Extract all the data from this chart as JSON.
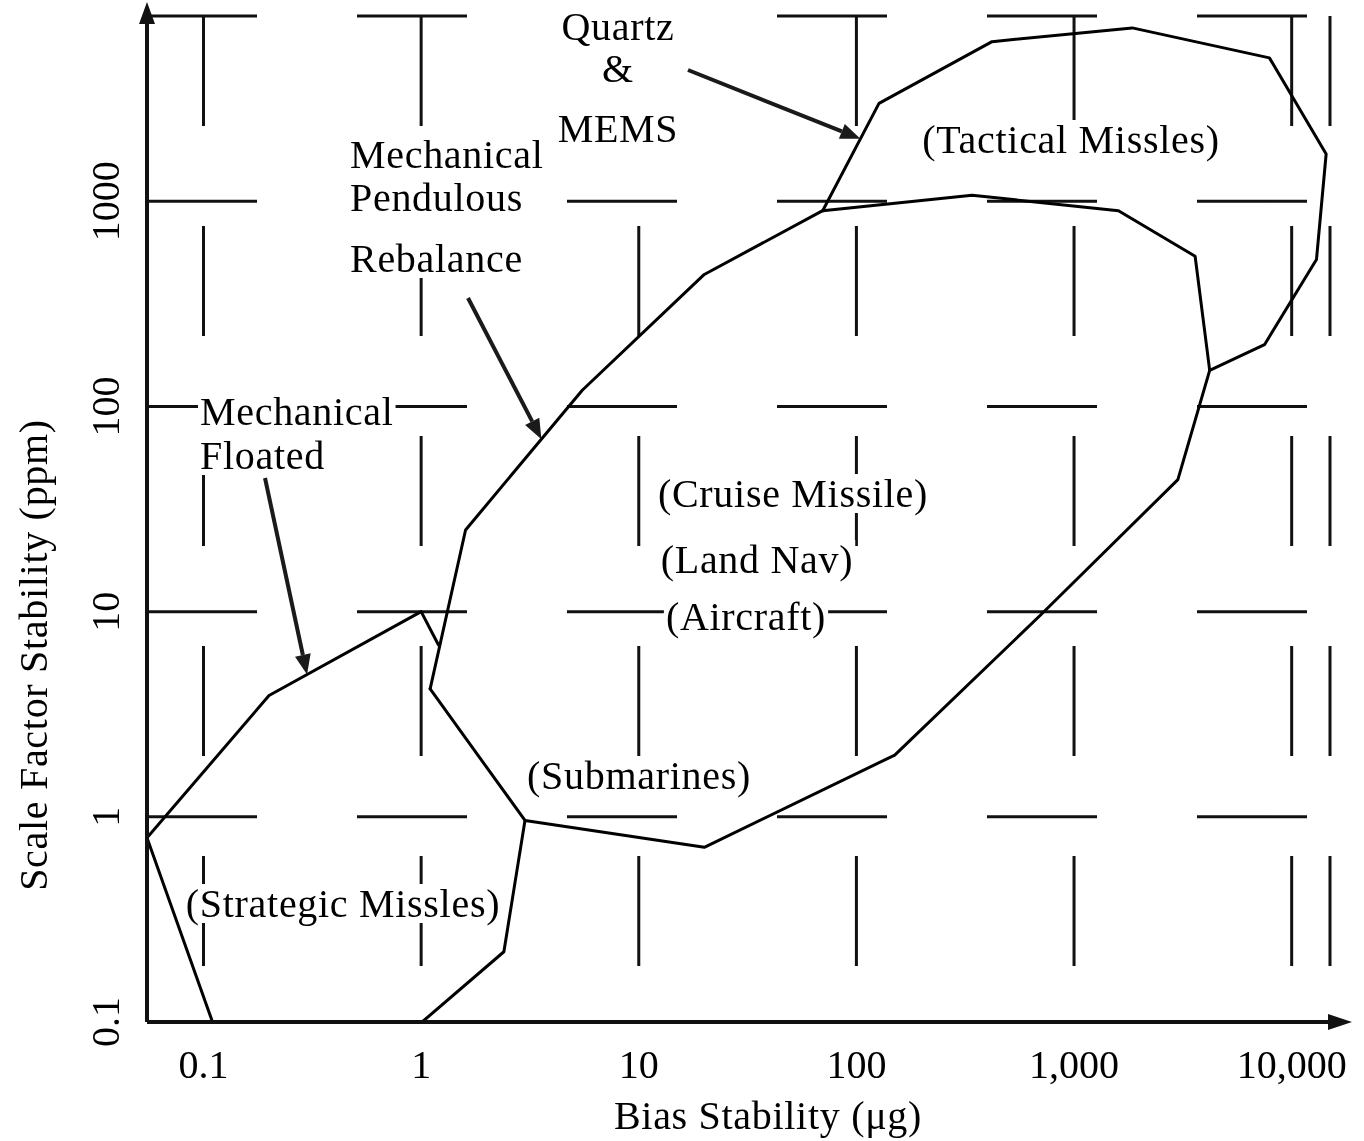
{
  "chart_data": {
    "type": "line",
    "xlabel": "Bias Stability (μg)",
    "ylabel": "Scale Factor Stability (ppm)",
    "log": "xy",
    "xlim": [
      0.055,
      15000
    ],
    "ylim": [
      0.1,
      8000
    ],
    "xticks": [
      0.1,
      1,
      10,
      100,
      {
        "value": 1000,
        "label": "1,000"
      },
      {
        "value": 10000,
        "label": "10,000"
      }
    ],
    "yticks": [
      0.1,
      1,
      10,
      100,
      1000
    ],
    "grid": true,
    "series": [
      {
        "color": "#000000",
        "x": [
          4200,
          7500,
          13000,
          14400,
          7900,
          1850,
          420,
          127,
          70
        ],
        "values": [
          150,
          200,
          520,
          1700,
          5000,
          7000,
          6000,
          3000,
          900
        ]
      },
      {
        "color": "#000000",
        "x": [
          1.1,
          1.6,
          5.5,
          20,
          70,
          340,
          1600,
          3600,
          4200,
          3000,
          700,
          150,
          20,
          3
        ],
        "values": [
          4.2,
          25,
          120,
          440,
          900,
          1070,
          900,
          540,
          150,
          44,
          9.6,
          2,
          0.71,
          0.96
        ]
      },
      {
        "color": "#000000",
        "x": [
          1.2,
          1,
          0.2,
          0.055,
          0.11,
          1.01,
          2.4,
          3,
          1.1
        ],
        "values": [
          6.9,
          10,
          3.9,
          0.79,
          0.1,
          0.1,
          0.22,
          0.96,
          4.2
        ]
      }
    ],
    "annotations": [
      "Quartz & MEMS",
      "(Tactical Missles)",
      "Mechanical Pendulous Rebalance",
      "Mechanical Floated",
      "(Cruise Missile)",
      "(Land Nav)",
      "(Aircraft)",
      "(Submarines)",
      "(Strategic Missles)"
    ]
  }
}
